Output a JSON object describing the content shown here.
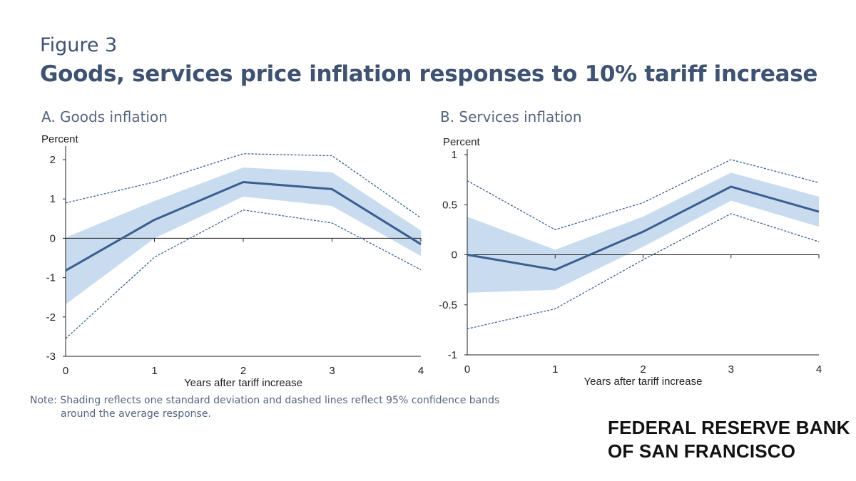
{
  "figure": {
    "label": "Figure 3",
    "title": "Goods, services price inflation responses to 10% tariff increase"
  },
  "note": {
    "line1": "Note: Shading reflects one standard deviation and dashed lines reflect 95% confidence bands",
    "line2": "around the average response."
  },
  "branding": {
    "line1": "FEDERAL RESERVE BANK",
    "line2": "OF SAN FRANCISCO"
  },
  "colors": {
    "line": "#3a5f8e",
    "band": "#c9dcef",
    "dashed": "#3a5f8e",
    "axis": "#222222"
  },
  "chart_data": [
    {
      "type": "line",
      "title": "A. Goods inflation",
      "ylabel": "Percent",
      "xlabel": "Years after tariff increase",
      "x": [
        0,
        1,
        2,
        3,
        4
      ],
      "xticks": [
        "0",
        "1",
        "2",
        "3",
        "4"
      ],
      "ylim": [
        -3,
        2.2
      ],
      "yticks": [
        -3,
        -2,
        -1,
        0,
        1,
        2
      ],
      "ytick_labels": [
        "-3",
        "-2",
        "-1",
        "0",
        "1",
        "2"
      ],
      "series": [
        {
          "name": "Average response",
          "style": "solid",
          "values": [
            -0.82,
            0.47,
            1.43,
            1.25,
            -0.15
          ]
        },
        {
          "name": "One standard deviation upper",
          "style": "band",
          "values": [
            0.02,
            0.95,
            1.8,
            1.68,
            0.2
          ]
        },
        {
          "name": "One standard deviation lower",
          "style": "band",
          "values": [
            -1.68,
            0.0,
            1.06,
            0.82,
            -0.45
          ]
        },
        {
          "name": "95% confidence upper",
          "style": "dashed",
          "values": [
            0.9,
            1.43,
            2.15,
            2.1,
            0.52
          ]
        },
        {
          "name": "95% confidence lower",
          "style": "dashed",
          "values": [
            -2.55,
            -0.48,
            0.72,
            0.39,
            -0.8
          ]
        }
      ]
    },
    {
      "type": "line",
      "title": "B. Services inflation",
      "ylabel": "Percent",
      "xlabel": "Years after tariff increase",
      "x": [
        0,
        1,
        2,
        3,
        4
      ],
      "xticks": [
        "0",
        "1",
        "2",
        "3",
        "4"
      ],
      "ylim": [
        -1,
        1
      ],
      "yticks": [
        -1,
        -0.5,
        0,
        0.5,
        1
      ],
      "ytick_labels": [
        "-1",
        "-0.5",
        "0",
        "0.5",
        "1"
      ],
      "series": [
        {
          "name": "Average response",
          "style": "solid",
          "values": [
            0.0,
            -0.15,
            0.23,
            0.68,
            0.43
          ]
        },
        {
          "name": "One standard deviation upper",
          "style": "band",
          "values": [
            0.38,
            0.05,
            0.38,
            0.82,
            0.58
          ]
        },
        {
          "name": "One standard deviation lower",
          "style": "band",
          "values": [
            -0.38,
            -0.35,
            0.08,
            0.54,
            0.28
          ]
        },
        {
          "name": "95% confidence upper",
          "style": "dashed",
          "values": [
            0.74,
            0.25,
            0.52,
            0.95,
            0.72
          ]
        },
        {
          "name": "95% confidence lower",
          "style": "dashed",
          "values": [
            -0.74,
            -0.54,
            -0.05,
            0.41,
            0.13
          ]
        }
      ]
    }
  ]
}
